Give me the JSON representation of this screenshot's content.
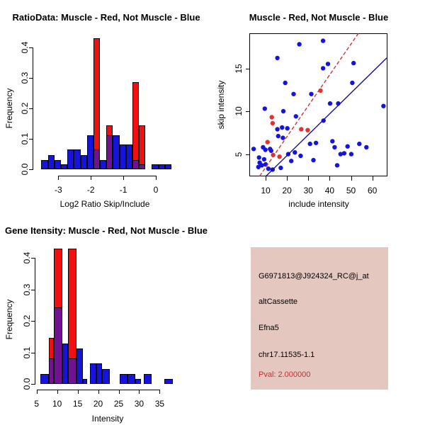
{
  "colors": {
    "background": "#ffffff",
    "hist_blue": "#1414dc",
    "hist_red": "#f01010",
    "overlap_purple": "#701292",
    "scatter_blue": "#1414dc",
    "scatter_red": "#e83030",
    "blue_line": "#10108e",
    "red_line": "#cc3333",
    "pval_red": "#c03030",
    "info_bg": "#e4c7bf",
    "axis": "#000000"
  },
  "chart_data": [
    {
      "id": "ratio_histogram",
      "type": "bar",
      "title": "RatioData: Muscle - Red, Not Muscle - Blue",
      "xlabel": "Log2 Ratio Skip/Include",
      "ylabel": "Frequency",
      "legend_note": "Muscle = red bars, Not Muscle = blue bars, overlap = purple",
      "xticks": [
        -3,
        -2,
        -1,
        0
      ],
      "xtick_labels": [
        "-3",
        "-2",
        "-1",
        "0"
      ],
      "yticks": [
        0,
        0.1,
        0.2,
        0.3,
        0.4
      ],
      "ytick_labels": [
        "0.0",
        "0.1",
        "0.2",
        "0.3",
        "0.4"
      ],
      "xlim": [
        -3.7,
        0.56
      ],
      "ylim": [
        0,
        0.45
      ],
      "grid": false,
      "bars": [
        {
          "x0": -3.52,
          "w": 0.2,
          "blue": 0.032,
          "red": 0
        },
        {
          "x0": -3.32,
          "w": 0.2,
          "blue": 0.048,
          "red": 0
        },
        {
          "x0": -3.12,
          "w": 0.2,
          "blue": 0.032,
          "red": 0
        },
        {
          "x0": -2.92,
          "w": 0.2,
          "blue": 0.016,
          "red": 0
        },
        {
          "x0": -2.72,
          "w": 0.2,
          "blue": 0.065,
          "red": 0
        },
        {
          "x0": -2.52,
          "w": 0.2,
          "blue": 0.065,
          "red": 0
        },
        {
          "x0": -2.32,
          "w": 0.2,
          "blue": 0.048,
          "red": 0
        },
        {
          "x0": -2.12,
          "w": 0.2,
          "blue": 0.113,
          "red": 0
        },
        {
          "x0": -1.92,
          "w": 0.2,
          "blue": 0.065,
          "red": 0.43
        },
        {
          "x0": -1.72,
          "w": 0.2,
          "blue": 0.032,
          "red": 0
        },
        {
          "x0": -1.52,
          "w": 0.2,
          "blue": 0.113,
          "red": 0.145
        },
        {
          "x0": -1.32,
          "w": 0.2,
          "blue": 0.113,
          "red": 0
        },
        {
          "x0": -1.12,
          "w": 0.2,
          "blue": 0.081,
          "red": 0
        },
        {
          "x0": -0.92,
          "w": 0.2,
          "blue": 0.081,
          "red": 0
        },
        {
          "x0": -0.72,
          "w": 0.2,
          "blue": 0.032,
          "red": 0.285
        },
        {
          "x0": -0.52,
          "w": 0.2,
          "blue": 0.016,
          "red": 0.145
        },
        {
          "x0": -0.12,
          "w": 0.2,
          "blue": 0.016,
          "red": 0
        },
        {
          "x0": 0.08,
          "w": 0.2,
          "blue": 0.016,
          "red": 0
        },
        {
          "x0": 0.28,
          "w": 0.2,
          "blue": 0.016,
          "red": 0
        }
      ]
    },
    {
      "id": "skip_include_scatter",
      "type": "scatter",
      "title": "Muscle - Red, Not Muscle - Blue",
      "xlabel": "include intensity",
      "ylabel": "skip intensity",
      "xticks": [
        10,
        20,
        30,
        40,
        50,
        60
      ],
      "xtick_labels": [
        "10",
        "20",
        "30",
        "40",
        "50",
        "60"
      ],
      "yticks": [
        5,
        10,
        15
      ],
      "ytick_labels": [
        "5",
        "10",
        "15"
      ],
      "xlim": [
        2.5,
        66.8
      ],
      "ylim": [
        2.4,
        19.1
      ],
      "grid": false,
      "blue_points": [
        [
          4.5,
          5.6
        ],
        [
          6.7,
          3.5
        ],
        [
          7.0,
          4.6
        ],
        [
          7.3,
          4.0
        ],
        [
          8.3,
          3.7
        ],
        [
          8.9,
          5.8
        ],
        [
          9.4,
          4.4
        ],
        [
          9.7,
          10.3
        ],
        [
          10.0,
          5.5
        ],
        [
          10.1,
          3.8
        ],
        [
          11.4,
          3.3
        ],
        [
          12.2,
          5.6
        ],
        [
          12.7,
          5.4
        ],
        [
          13.4,
          3.2
        ],
        [
          15.6,
          16.2
        ],
        [
          15.6,
          7.9
        ],
        [
          16.0,
          7.1
        ],
        [
          17.2,
          3.4
        ],
        [
          17.8,
          8.1
        ],
        [
          18.2,
          6.9
        ],
        [
          18.4,
          10.0
        ],
        [
          19.3,
          13.3
        ],
        [
          20.3,
          8.0
        ],
        [
          20.7,
          5.0
        ],
        [
          22.1,
          4.2
        ],
        [
          23.2,
          12.0
        ],
        [
          23.8,
          5.2
        ],
        [
          24.3,
          9.4
        ],
        [
          25.9,
          17.8
        ],
        [
          26.5,
          4.8
        ],
        [
          30.9,
          6.2
        ],
        [
          31.5,
          12.0
        ],
        [
          32.5,
          4.3
        ],
        [
          33.7,
          6.3
        ],
        [
          37.0,
          15.0
        ],
        [
          37.0,
          18.2
        ],
        [
          37.2,
          8.9
        ],
        [
          39.3,
          15.5
        ],
        [
          40.3,
          10.9
        ],
        [
          41.4,
          6.5
        ],
        [
          42.4,
          5.8
        ],
        [
          43.6,
          3.7
        ],
        [
          44.1,
          10.9
        ],
        [
          45.2,
          5.0
        ],
        [
          46.9,
          5.1
        ],
        [
          48.5,
          5.9
        ],
        [
          50.2,
          5.0
        ],
        [
          50.7,
          13.3
        ],
        [
          51.3,
          15.6
        ],
        [
          54.0,
          6.2
        ],
        [
          57.3,
          5.8
        ],
        [
          65.3,
          10.6
        ]
      ],
      "red_points": [
        [
          11.0,
          6.4
        ],
        [
          13.0,
          9.3
        ],
        [
          13.4,
          8.6
        ],
        [
          13.6,
          4.9
        ],
        [
          16.6,
          4.7
        ],
        [
          26.8,
          7.9
        ],
        [
          29.8,
          7.8
        ],
        [
          35.8,
          12.4
        ]
      ],
      "red_fit_line": {
        "x1": 7.3,
        "y1": 2.44,
        "x2": 53.5,
        "y2": 19.05,
        "dashed": true
      },
      "blue_fit_line": {
        "x1": 10.3,
        "y1": 2.44,
        "x2": 66.8,
        "y2": 16.2,
        "dashed": false
      }
    },
    {
      "id": "gene_intensity_histogram",
      "type": "bar",
      "title": "Gene Itensity: Muscle - Red, Not Muscle - Blue",
      "xlabel": "Intensity",
      "ylabel": "Frequency",
      "legend_note": "Muscle = red bars, Not Muscle = blue bars, overlap = purple",
      "xticks": [
        5,
        10,
        15,
        20,
        25,
        30,
        35
      ],
      "xtick_labels": [
        "5",
        "10",
        "15",
        "20",
        "25",
        "30",
        "35"
      ],
      "yticks": [
        0,
        0.1,
        0.2,
        0.3,
        0.4
      ],
      "ytick_labels": [
        "0.0",
        "0.1",
        "0.2",
        "0.3",
        "0.4"
      ],
      "xlim": [
        5,
        38.6
      ],
      "ylim": [
        0,
        0.45
      ],
      "grid": false,
      "bars": [
        {
          "x0": 6.0,
          "w": 2.0,
          "blue": 0.032,
          "red": 0
        },
        {
          "x0": 8.0,
          "w": 1.2,
          "blue": 0.081,
          "red": 0.145
        },
        {
          "x0": 9.2,
          "w": 2.0,
          "blue": 0.242,
          "red": 0.43
        },
        {
          "x0": 11.2,
          "w": 1.5,
          "blue": 0.129,
          "red": 0
        },
        {
          "x0": 12.7,
          "w": 2.0,
          "blue": 0.081,
          "red": 0.43
        },
        {
          "x0": 14.7,
          "w": 1.6,
          "blue": 0.113,
          "red": 0
        },
        {
          "x0": 16.3,
          "w": 1.0,
          "blue": 0.016,
          "red": 0
        },
        {
          "x0": 18.0,
          "w": 1.5,
          "blue": 0.065,
          "red": 0
        },
        {
          "x0": 19.5,
          "w": 1.4,
          "blue": 0.065,
          "red": 0
        },
        {
          "x0": 20.9,
          "w": 1.9,
          "blue": 0.048,
          "red": 0
        },
        {
          "x0": 25.2,
          "w": 2.0,
          "blue": 0.032,
          "red": 0
        },
        {
          "x0": 27.2,
          "w": 1.9,
          "blue": 0.032,
          "red": 0
        },
        {
          "x0": 29.1,
          "w": 1.3,
          "blue": 0.016,
          "red": 0
        },
        {
          "x0": 31.1,
          "w": 2.0,
          "blue": 0.032,
          "red": 0
        },
        {
          "x0": 36.2,
          "w": 2.0,
          "blue": 0.016,
          "red": 0
        }
      ]
    }
  ],
  "info_panel": {
    "probe_id": "G6971813@J924324_RC@j_at",
    "event_type": "altCassette",
    "gene": "Efna5",
    "location": "chr17.11535-1.1",
    "pval_text": "Pval: 2.000000"
  }
}
